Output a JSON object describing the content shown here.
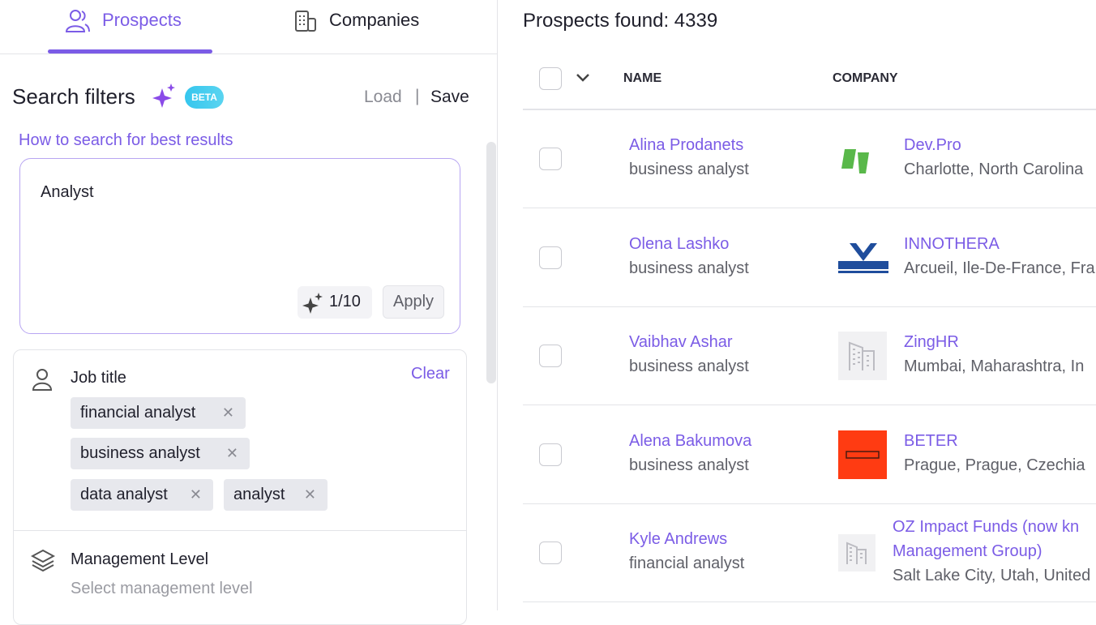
{
  "tabs": [
    "Prospects",
    "Companies"
  ],
  "filters": {
    "title": "Search filters",
    "badge": "BETA",
    "load": "Load",
    "separator": "|",
    "save": "Save",
    "help": "How to search for best results",
    "query": "Analyst",
    "counter": "1/10",
    "apply": "Apply",
    "job_title": {
      "label": "Job title",
      "clear": "Clear",
      "tags": [
        "financial analyst",
        "business analyst",
        "data analyst",
        "analyst"
      ]
    },
    "management": {
      "label": "Management Level",
      "placeholder": "Select management level"
    }
  },
  "results": {
    "title": "Prospects found: 4339",
    "columns": [
      "NAME",
      "COMPANY"
    ],
    "rows": [
      {
        "name": "Alina Prodanets",
        "title": "business analyst",
        "company": [
          "Dev.Pro"
        ],
        "location": "Charlotte, North Carolina"
      },
      {
        "name": "Olena Lashko",
        "title": "business analyst",
        "company": [
          "INNOTHERA"
        ],
        "location": "Arcueil, Ile-De-France, Fra"
      },
      {
        "name": "Vaibhav Ashar",
        "title": "business analyst",
        "company": [
          "ZingHR"
        ],
        "location": "Mumbai, Maharashtra, In"
      },
      {
        "name": "Alena Bakumova",
        "title": "business analyst",
        "company": [
          "BETER"
        ],
        "location": "Prague, Prague, Czechia"
      },
      {
        "name": "Kyle Andrews",
        "title": "financial analyst",
        "company": [
          "OZ Impact Funds (now kn",
          "Management Group)"
        ],
        "location": "Salt Lake City, Utah, United"
      }
    ]
  }
}
